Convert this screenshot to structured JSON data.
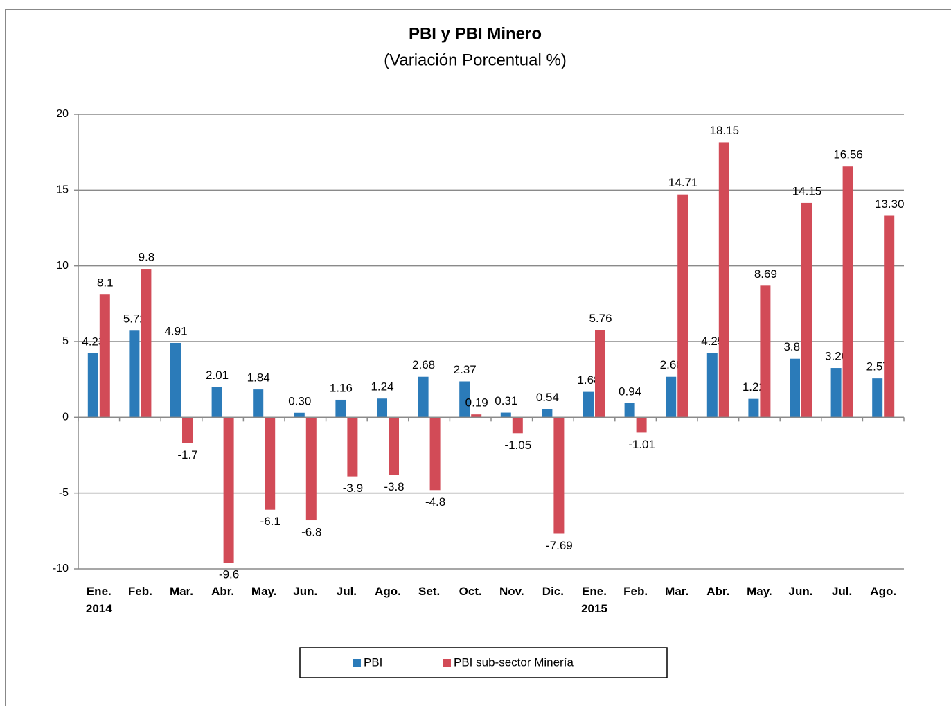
{
  "chart_data": {
    "type": "bar",
    "title": "PBI y PBI Minero",
    "subtitle": "(Variación Porcentual %)",
    "categories": [
      [
        "Ene.",
        "2014"
      ],
      [
        "Feb."
      ],
      [
        "Mar."
      ],
      [
        "Abr."
      ],
      [
        "May."
      ],
      [
        "Jun."
      ],
      [
        "Jul."
      ],
      [
        "Ago."
      ],
      [
        "Set."
      ],
      [
        "Oct."
      ],
      [
        "Nov."
      ],
      [
        "Dic."
      ],
      [
        "Ene.",
        "2015"
      ],
      [
        "Feb."
      ],
      [
        "Mar."
      ],
      [
        "Abr."
      ],
      [
        "May."
      ],
      [
        "Jun."
      ],
      [
        "Jul."
      ],
      [
        "Ago."
      ]
    ],
    "series": [
      {
        "name": "PBI",
        "color": "#2b7bb9",
        "values": [
          4.23,
          5.72,
          4.91,
          2.01,
          1.84,
          0.3,
          1.16,
          1.24,
          2.68,
          2.37,
          0.31,
          0.54,
          1.68,
          0.94,
          2.68,
          4.25,
          1.22,
          3.87,
          3.26,
          2.57
        ],
        "value_labels": [
          "4.23",
          "5.72",
          "4.91",
          "2.01",
          "1.84",
          "0.30",
          "1.16",
          "1.24",
          "2.68",
          "2.37",
          "0.31",
          "0.54",
          "1.68",
          "0.94",
          "2.68",
          "4.25",
          "1.22",
          "3.87",
          "3.26",
          "2.57"
        ]
      },
      {
        "name": "PBI sub-sector Minería",
        "color": "#d24b57",
        "values": [
          8.1,
          9.8,
          -1.7,
          -9.6,
          -6.1,
          -6.8,
          -3.9,
          -3.8,
          -4.8,
          0.19,
          -1.05,
          -7.69,
          5.76,
          -1.01,
          14.71,
          18.15,
          8.69,
          14.15,
          16.56,
          13.3
        ],
        "value_labels": [
          "8.1",
          "9.8",
          "-1.7",
          "-9.6",
          "-6.1",
          "-6.8",
          "-3.9",
          "-3.8",
          "-4.8",
          "0.19",
          "-1.05",
          "-7.69",
          "5.76",
          "-1.01",
          "14.71",
          "18.15",
          "8.69",
          "14.15",
          "16.56",
          "13.30"
        ]
      }
    ],
    "ylim": [
      -10,
      20
    ],
    "yticks": [
      -10,
      -5,
      0,
      5,
      10,
      15,
      20
    ],
    "grid": true,
    "legend": "bottom"
  }
}
